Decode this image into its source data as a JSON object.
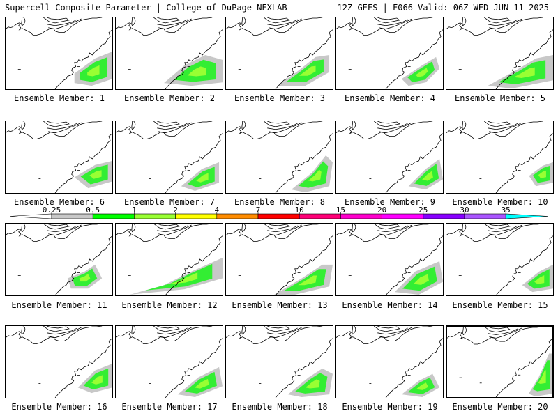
{
  "header": {
    "left_title": "Supercell Composite Parameter | College of DuPage NEXLAB",
    "right_title": "12Z GEFS | F066 Valid: 06Z WED JUN 11 2025"
  },
  "panels": [
    {
      "label": "Ensemble Member: 1",
      "highlighted": false
    },
    {
      "label": "Ensemble Member: 2",
      "highlighted": false
    },
    {
      "label": "Ensemble Member: 3",
      "highlighted": false
    },
    {
      "label": "Ensemble Member: 4",
      "highlighted": false
    },
    {
      "label": "Ensemble Member: 5",
      "highlighted": false
    },
    {
      "label": "Ensemble Member: 6",
      "highlighted": false
    },
    {
      "label": "Ensemble Member: 7",
      "highlighted": false
    },
    {
      "label": "Ensemble Member: 8",
      "highlighted": false
    },
    {
      "label": "Ensemble Member: 9",
      "highlighted": false
    },
    {
      "label": "Ensemble Member: 10",
      "highlighted": false
    },
    {
      "label": "Ensemble Member: 11",
      "highlighted": false
    },
    {
      "label": "Ensemble Member: 12",
      "highlighted": false
    },
    {
      "label": "Ensemble Member: 13",
      "highlighted": false
    },
    {
      "label": "Ensemble Member: 14",
      "highlighted": false
    },
    {
      "label": "Ensemble Member: 15",
      "highlighted": false
    },
    {
      "label": "Ensemble Member: 16",
      "highlighted": false
    },
    {
      "label": "Ensemble Member: 17",
      "highlighted": false
    },
    {
      "label": "Ensemble Member: 18",
      "highlighted": false
    },
    {
      "label": "Ensemble Member: 19",
      "highlighted": false
    },
    {
      "label": "Ensemble Member: 20",
      "highlighted": true
    }
  ],
  "colorbar": {
    "labels": [
      "0.25",
      "0.5",
      "1",
      "2",
      "4",
      "7",
      "10",
      "15",
      "20",
      "25",
      "30",
      "35"
    ],
    "colors": [
      "#c8c8c8",
      "#00ff00",
      "#99ff33",
      "#ffff00",
      "#ff8c00",
      "#ff0000",
      "#ff0077",
      "#ff00cc",
      "#ff00ff",
      "#8800ff",
      "#aa55ff",
      "#00ffff"
    ]
  }
}
